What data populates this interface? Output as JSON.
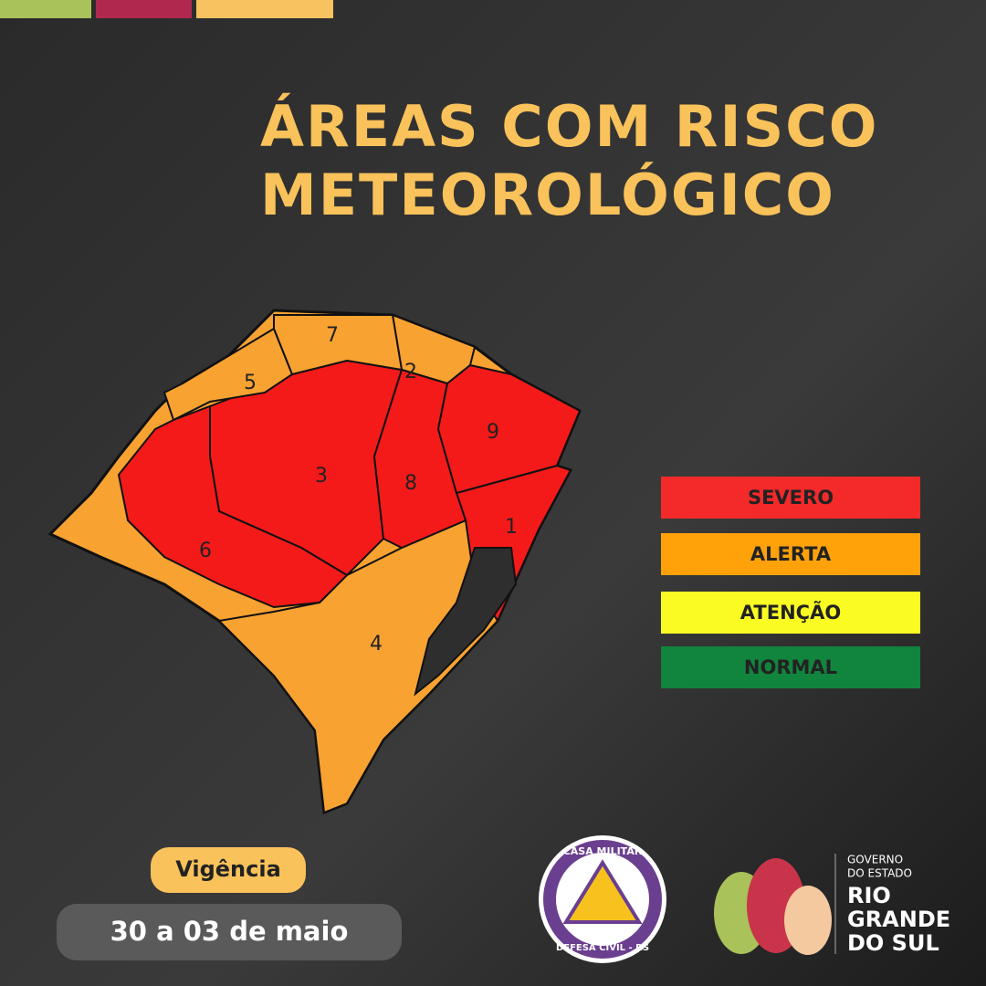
{
  "title": [
    "ÁREAS COM RISCO",
    "METEOROLÓGICO"
  ],
  "legend": [
    {
      "label": "SEVERO",
      "color": "#f42a2a"
    },
    {
      "label": "ALERTA",
      "color": "#ffa20a"
    },
    {
      "label": "ATENÇÃO",
      "color": "#fbfb24"
    },
    {
      "label": "NORMAL",
      "color": "#11843d"
    }
  ],
  "map": {
    "regions": [
      {
        "label": "1",
        "color": "#f41a1a"
      },
      {
        "label": "2",
        "color": "#f8a232"
      },
      {
        "label": "3",
        "color": "#f41a1a"
      },
      {
        "label": "4",
        "color": "#f8a232"
      },
      {
        "label": "5",
        "color": "#f8a232"
      },
      {
        "label": "6",
        "color": "#f41a1a"
      },
      {
        "label": "7",
        "color": "#f8a232"
      },
      {
        "label": "8",
        "color": "#f41a1a"
      },
      {
        "label": "9",
        "color": "#f41a1a"
      }
    ]
  },
  "validity": {
    "label": "Vigência",
    "dates": "30 a 03 de maio"
  },
  "logos": {
    "civil_defense": {
      "top": "CASA MILITAR",
      "bottom": "DEFESA CIVIL - RS"
    },
    "government": [
      "GOVERNO",
      "DO ESTADO",
      "RIO",
      "GRANDE",
      "DO SUL"
    ]
  }
}
